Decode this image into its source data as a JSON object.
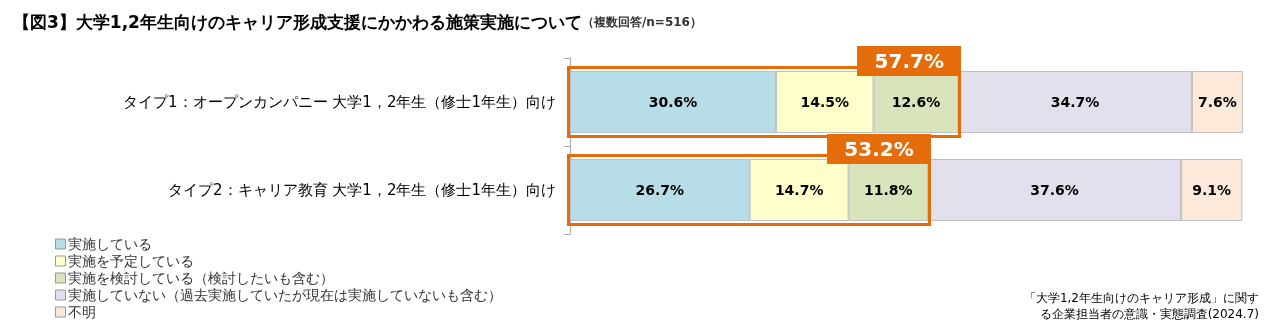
{
  "chart_data": {
    "type": "bar",
    "orientation": "horizontal",
    "stacked": true,
    "title": "【図3】大学1,2年生向けのキャリア形成支援にかかわる施策実施について",
    "subtitle": "（複数回答/n=516）",
    "categories": [
      "タイプ1：オープンカンパニー 大学1，2年生（修士1年生）向け",
      "タイプ2：キャリア教育 大学1，2年生（修士1年生）向け"
    ],
    "series": [
      {
        "name": "実施している",
        "color": "#b7dde8",
        "values": [
          30.6,
          26.7
        ],
        "value_labels": [
          "30.6%",
          "26.7%"
        ]
      },
      {
        "name": "実施を予定している",
        "color": "#ffffcc",
        "values": [
          14.5,
          14.7
        ],
        "value_labels": [
          "14.5%",
          "14.7%"
        ]
      },
      {
        "name": "実施を検討している（検討したいも含む）",
        "color": "#d8e4bc",
        "values": [
          12.6,
          11.8
        ],
        "value_labels": [
          "12.6%",
          "11.8%"
        ]
      },
      {
        "name": "実施していない（過去実施していたが現在は実施していないも含む）",
        "color": "#e4dfec",
        "values": [
          34.7,
          37.6
        ],
        "value_labels": [
          "34.7%",
          "37.6%"
        ]
      },
      {
        "name": "不明",
        "color": "#fde9d9",
        "values": [
          7.6,
          9.1
        ],
        "value_labels": [
          "7.6%",
          "9.1%"
        ]
      }
    ],
    "legend": "bottom left",
    "annotations": [
      {
        "text": "57.7%",
        "x": 57.7,
        "y": "タイプ1：オープンカンパニー 大学1，2年生（修士1年生）向け"
      },
      {
        "text": "53.2%",
        "x": 53.2,
        "y": "タイプ2：キャリア教育 大学1，2年生（修士1年生）向け"
      },
      "「大学1,2年生向けのキャリア形成」に関する企業担当者の意識・実態調査(2024.7)"
    ]
  }
}
